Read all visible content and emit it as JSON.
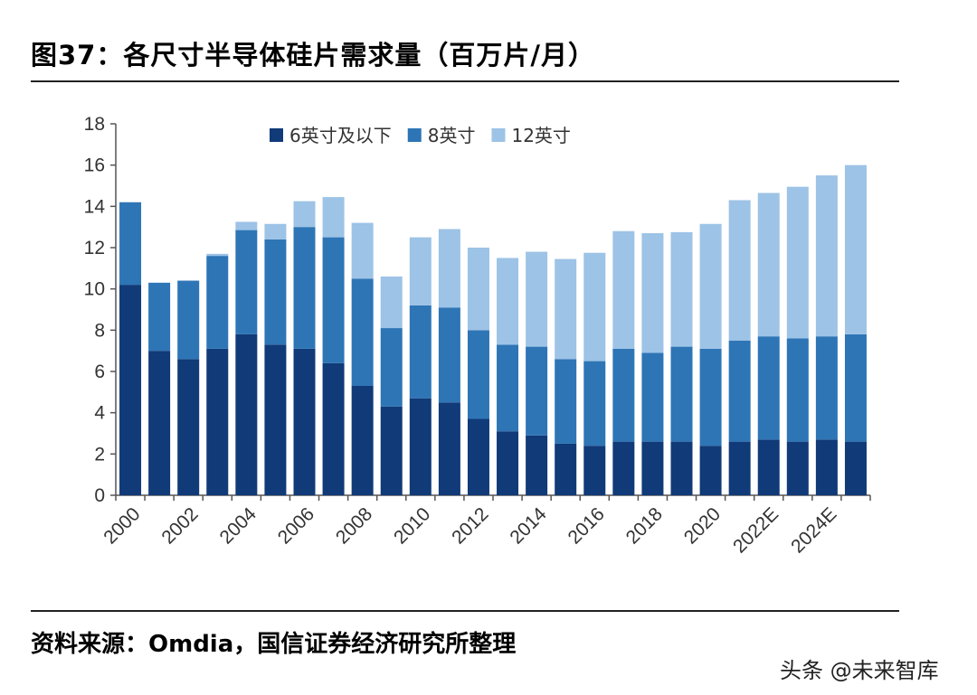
{
  "title": "图37：各尺寸半导体硅片需求量（百万片/月）",
  "source": "资料来源：Omdia，国信证券经济研究所整理",
  "watermark": "头条 @未来智库",
  "chart_data": {
    "type": "bar",
    "stacked": true,
    "title": "图37：各尺寸半导体硅片需求量（百万片/月）",
    "xlabel": "",
    "ylabel": "",
    "ylim": [
      0,
      18
    ],
    "yticks": [
      0,
      2,
      4,
      6,
      8,
      10,
      12,
      14,
      16,
      18
    ],
    "grid": false,
    "legend_position": "top",
    "categories": [
      "2000",
      "2001",
      "2002",
      "2003",
      "2004",
      "2005",
      "2006",
      "2007",
      "2008",
      "2009",
      "2010",
      "2011",
      "2012",
      "2013",
      "2014",
      "2015",
      "2016",
      "2017",
      "2018",
      "2019",
      "2020",
      "2021",
      "2022E",
      "2023E",
      "2024E",
      "2025E"
    ],
    "xtick_labels": [
      "2000",
      "2002",
      "2004",
      "2006",
      "2008",
      "2010",
      "2012",
      "2014",
      "2016",
      "2018",
      "2020",
      "2022E",
      "2024E"
    ],
    "series": [
      {
        "name": "6英寸及以下",
        "color": "#103a78",
        "values": [
          10.2,
          7.0,
          6.6,
          7.1,
          7.8,
          7.3,
          7.1,
          6.4,
          5.3,
          4.3,
          4.7,
          4.5,
          3.7,
          3.1,
          2.9,
          2.5,
          2.4,
          2.6,
          2.6,
          2.6,
          2.4,
          2.6,
          2.7,
          2.6,
          2.7,
          2.6
        ]
      },
      {
        "name": "8英寸",
        "color": "#2e75b6",
        "values": [
          4.0,
          3.3,
          3.8,
          4.5,
          5.05,
          5.1,
          5.9,
          6.1,
          5.2,
          3.8,
          4.5,
          4.6,
          4.3,
          4.2,
          4.3,
          4.1,
          4.1,
          4.5,
          4.3,
          4.6,
          4.7,
          4.9,
          5.0,
          5.0,
          5.0,
          5.2
        ]
      },
      {
        "name": "12英寸",
        "color": "#9dc3e6",
        "values": [
          0,
          0,
          0,
          0.1,
          0.4,
          0.75,
          1.25,
          1.95,
          2.7,
          2.5,
          3.3,
          3.8,
          4.0,
          4.2,
          4.6,
          4.85,
          5.25,
          5.7,
          5.8,
          5.55,
          6.05,
          6.8,
          6.95,
          7.35,
          7.8,
          8.2
        ]
      }
    ]
  }
}
